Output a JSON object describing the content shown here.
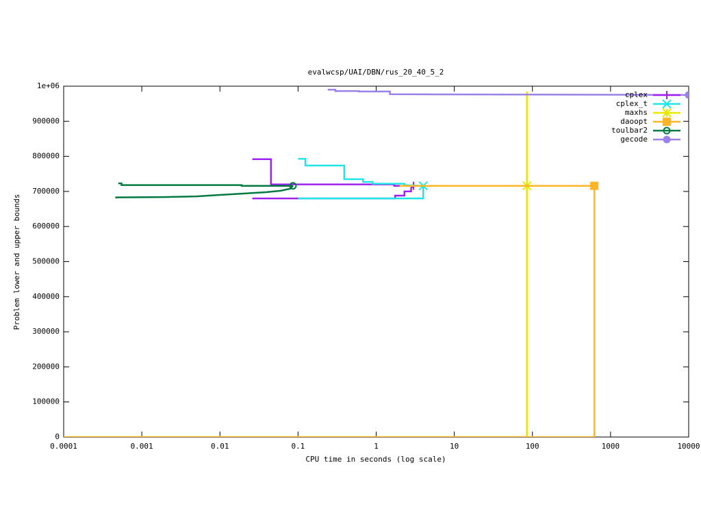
{
  "chart_data": {
    "type": "line",
    "title": "evalwcsp/UAI/DBN/rus_20_40_5_2",
    "x_label": "CPU time in seconds (log scale)",
    "y_label": "Problem lower and upper bounds",
    "x_scale": "log",
    "xlim": [
      0.0001,
      10000
    ],
    "ylim": [
      0,
      1000000
    ],
    "xticks": [
      0.0001,
      0.001,
      0.01,
      0.1,
      1,
      10,
      100,
      1000,
      10000
    ],
    "yticks": [
      0,
      100000,
      200000,
      300000,
      400000,
      500000,
      600000,
      700000,
      800000,
      900000,
      {
        "value": 1000000,
        "label": "1e+06"
      }
    ],
    "legend": "top-right",
    "grid": false,
    "series": [
      {
        "name": "cplex",
        "color": "#a020f0",
        "point": "plus",
        "x": [
          0.026,
          0.8,
          1.75,
          1.75,
          2.3,
          2.3,
          2.8,
          2.8,
          3.0,
          null,
          0.026,
          0.045,
          0.045,
          1.7,
          1.7,
          3.0
        ],
        "values": [
          680000,
          680000,
          680000,
          688000,
          688000,
          700000,
          700000,
          710000,
          716000,
          null,
          792000,
          792000,
          720000,
          720000,
          716000,
          716000
        ]
      },
      {
        "name": "cplex_t",
        "color": "#1ee6e6",
        "point": "cross",
        "x": [
          0.1,
          4.0,
          4.0,
          null,
          0.1,
          0.124,
          0.124,
          0.39,
          0.39,
          0.68,
          0.68,
          0.9,
          0.9,
          2.3,
          2.3,
          4.0
        ],
        "values": [
          680000,
          680000,
          716000,
          null,
          793000,
          793000,
          774000,
          774000,
          735000,
          735000,
          727000,
          727000,
          722000,
          722000,
          718000,
          716000
        ]
      },
      {
        "name": "maxhs",
        "color": "#e8e800",
        "point": "star",
        "x": [
          0.0001,
          85,
          85,
          null,
          2.0,
          85
        ],
        "values": [
          0,
          0,
          985000,
          null,
          716000,
          716000
        ]
      },
      {
        "name": "daoopt",
        "color": "#ffb526",
        "point": "square",
        "x": [
          0.0001,
          620,
          620,
          null,
          2.0,
          620
        ],
        "values": [
          0,
          0,
          716000,
          null,
          716000,
          716000
        ]
      },
      {
        "name": "toulbar2",
        "color": "#007a40",
        "point": "circle",
        "x": [
          0.00047,
          0.00047,
          0.002,
          0.005,
          0.01,
          0.02,
          0.04,
          0.06,
          0.08,
          0.086,
          null,
          0.0005,
          0.00055,
          0.00055,
          0.019,
          0.019,
          0.086
        ],
        "values": [
          680000,
          683000,
          684000,
          686000,
          690000,
          694000,
          698000,
          702000,
          708000,
          716000,
          null,
          723000,
          723000,
          718000,
          718000,
          716000,
          716000
        ]
      },
      {
        "name": "gecode",
        "color": "#9a80e8",
        "point": "disc",
        "x": [
          0.24,
          0.3,
          0.3,
          0.6,
          0.6,
          1.5,
          1.5,
          10000
        ],
        "values": [
          990000,
          990000,
          986000,
          986000,
          985000,
          985000,
          977000,
          975000
        ]
      }
    ]
  }
}
